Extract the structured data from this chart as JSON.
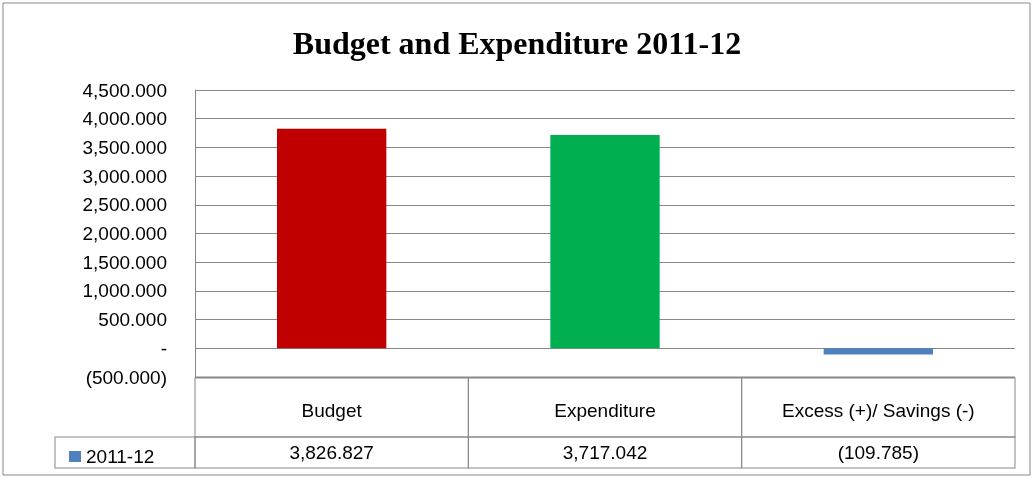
{
  "chart_data": {
    "type": "bar",
    "title": "Budget and Expenditure 2011-12",
    "categories": [
      "Budget",
      "Expenditure",
      "Excess (+)/ Savings (-)"
    ],
    "series": [
      {
        "name": "2011-12",
        "color": "#4f81bd",
        "colors": [
          "#c00000",
          "#00b050",
          "#4f81bd"
        ],
        "values": [
          3826.827,
          3717.042,
          -109.785
        ],
        "value_labels": [
          "3,826.827",
          "3,717.042",
          "(109.785)"
        ]
      }
    ],
    "ylim": [
      -500,
      4500
    ],
    "yticks": [
      {
        "value": -500,
        "label": "(500.000)"
      },
      {
        "value": 0,
        "label": "-"
      },
      {
        "value": 500,
        "label": "500.000"
      },
      {
        "value": 1000,
        "label": "1,000.000"
      },
      {
        "value": 1500,
        "label": "1,500.000"
      },
      {
        "value": 2000,
        "label": "2,000.000"
      },
      {
        "value": 2500,
        "label": "2,500.000"
      },
      {
        "value": 3000,
        "label": "3,000.000"
      },
      {
        "value": 3500,
        "label": "3,500.000"
      },
      {
        "value": 4000,
        "label": "4,000.000"
      },
      {
        "value": 4500,
        "label": "4,500.000"
      }
    ],
    "grid": "y",
    "legend": "bottom left"
  }
}
